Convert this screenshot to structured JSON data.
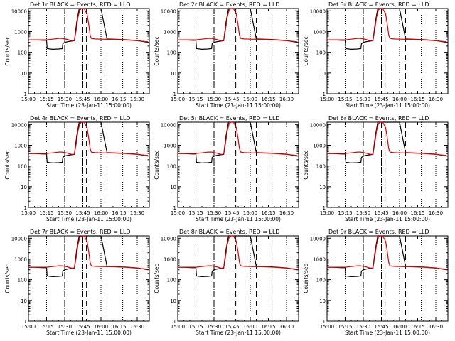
{
  "chart_data": {
    "type": "line",
    "panel_count": 9,
    "title_suffix": "BLACK = Events, RED = LLD",
    "panel_titles": [
      "Det 1r",
      "Det 2r",
      "Det 3r",
      "Det 4r",
      "Det 5r",
      "Det 6r",
      "Det 7r",
      "Det 8r",
      "Det 9r"
    ],
    "xlabel": "Start Time (23-Jan-11 15:00:00)",
    "ylabel": "Counts/sec",
    "x_ticks": [
      "15:00",
      "15:15",
      "15:30",
      "15:45",
      "16:00",
      "16:15",
      "16:30"
    ],
    "x_tick_minutes": [
      0,
      15,
      30,
      45,
      60,
      75,
      90
    ],
    "xlim_minutes": [
      0,
      100
    ],
    "y_ticks": [
      "1",
      "10",
      "100",
      "1000",
      "10000"
    ],
    "y_scale": "log",
    "ylim": [
      1,
      13000
    ],
    "dotted_lines_minutes": [
      15,
      30,
      45,
      60,
      78,
      90
    ],
    "dashed_lines_minutes": [
      30,
      45,
      48,
      65
    ],
    "legend": [
      {
        "name": "Events",
        "color": "#000000"
      },
      {
        "name": "LLD",
        "color": "#e00000"
      }
    ],
    "series": [
      {
        "name": "Events",
        "color": "#000000",
        "x_minutes": [
          0,
          5,
          12,
          15,
          15.5,
          20,
          25,
          28,
          28.5,
          30,
          33,
          38,
          40,
          42,
          44,
          46,
          48,
          60,
          65,
          70,
          80,
          90,
          99
        ],
        "values": [
          400,
          400,
          380,
          380,
          150,
          140,
          145,
          150,
          260,
          300,
          330,
          360,
          3000,
          13000,
          13000,
          13000,
          13000,
          13000,
          440,
          430,
          410,
          370,
          300
        ]
      },
      {
        "name": "LLD",
        "color": "#e00000",
        "x_minutes": [
          0,
          5,
          15,
          20,
          25,
          28,
          32,
          36,
          38,
          39.5,
          41,
          42.5,
          44,
          46,
          48.5,
          50,
          51,
          52,
          55,
          60,
          70,
          80,
          90,
          99
        ],
        "values": [
          400,
          400,
          400,
          430,
          470,
          470,
          420,
          360,
          370,
          1200,
          5000,
          11000,
          13000,
          13000,
          7000,
          2000,
          700,
          470,
          440,
          430,
          420,
          400,
          360,
          320
        ]
      }
    ]
  }
}
